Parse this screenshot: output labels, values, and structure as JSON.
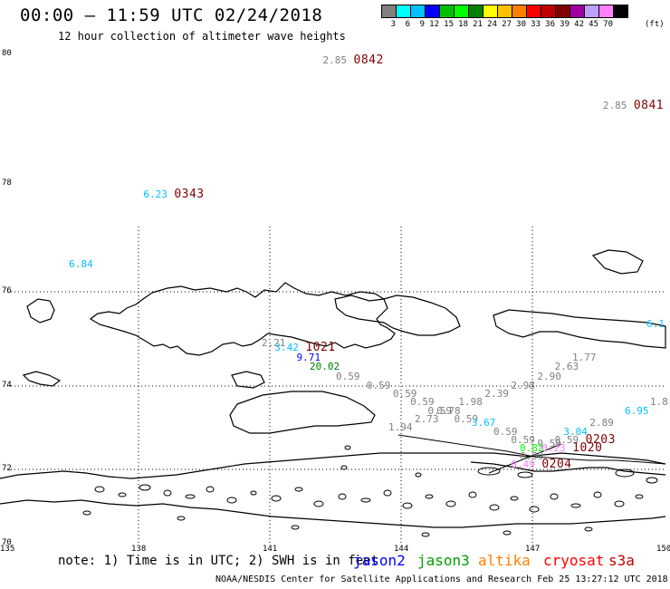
{
  "header": {
    "title": "00:00 – 11:59 UTC 02/24/2018",
    "subtitle": "12 hour collection of altimeter wave heights"
  },
  "color_scale": {
    "colors": [
      "#808080",
      "#00ffff",
      "#00c0ff",
      "#0000ff",
      "#00c000",
      "#00ff00",
      "#008000",
      "#ffff00",
      "#ffc000",
      "#ff8000",
      "#ff0000",
      "#c00000",
      "#800000",
      "#a000a0",
      "#c0a0ff",
      "#ff80ff",
      "#000000"
    ],
    "labels": [
      "3",
      "6",
      "9",
      "12",
      "15",
      "18",
      "21",
      "24",
      "27",
      "30",
      "33",
      "36",
      "39",
      "42",
      "45",
      "70"
    ],
    "unit": "(ft)"
  },
  "axes": {
    "lat_labels": [
      {
        "text": "80",
        "lat": 80
      },
      {
        "text": "78",
        "lat": 78
      },
      {
        "text": "76",
        "lat": 76
      },
      {
        "text": "74",
        "lat": 74
      },
      {
        "text": "72",
        "lat": 72
      },
      {
        "text": "70",
        "lat": 70
      }
    ],
    "lon_labels": [
      {
        "text": "135",
        "lon": 135
      },
      {
        "text": "138",
        "lon": 138
      },
      {
        "text": "141",
        "lon": 141
      },
      {
        "text": "144",
        "lon": 144
      },
      {
        "text": "147",
        "lon": 147
      },
      {
        "text": "150",
        "lon": 150
      }
    ]
  },
  "observations": [
    {
      "swh": "2.85",
      "swh_color": "#808080",
      "lon": 142.5,
      "lat": 79.9,
      "time": "0842"
    },
    {
      "swh": "2.85",
      "swh_color": "#808080",
      "lon": 148.9,
      "lat": 79.2,
      "time": "0841"
    },
    {
      "swh": "6.23",
      "swh_color": "#00c0ff",
      "lon": 138.4,
      "lat": 77.8,
      "time": "0343"
    },
    {
      "swh": "6.84",
      "swh_color": "#00c0ff",
      "lon": 136.7,
      "lat": 76.5
    },
    {
      "swh": "6.1",
      "swh_color": "#00c0ff",
      "lon": 149.9,
      "lat": 75.3
    },
    {
      "swh": "2.21",
      "swh_color": "#808080",
      "lon": 141.1,
      "lat": 74.9
    },
    {
      "swh": "3.42",
      "swh_color": "#00c0ff",
      "lon": 141.4,
      "lat": 74.8,
      "time": "1021"
    },
    {
      "swh": "9.71",
      "swh_color": "#0000ff",
      "lon": 141.9,
      "lat": 74.6
    },
    {
      "swh": "20.02",
      "swh_color": "#008000",
      "lon": 142.2,
      "lat": 74.4
    },
    {
      "swh": "0.59",
      "swh_color": "#808080",
      "lon": 142.8,
      "lat": 74.2
    },
    {
      "swh": "1.77",
      "swh_color": "#808080",
      "lon": 148.2,
      "lat": 74.6
    },
    {
      "swh": "2.63",
      "swh_color": "#808080",
      "lon": 147.8,
      "lat": 74.4
    },
    {
      "swh": "2.90",
      "swh_color": "#808080",
      "lon": 147.4,
      "lat": 74.2
    },
    {
      "swh": "2.98",
      "swh_color": "#808080",
      "lon": 146.8,
      "lat": 74.0
    },
    {
      "swh": "0.59",
      "swh_color": "#808080",
      "lon": 143.5,
      "lat": 74.0
    },
    {
      "swh": "0.59",
      "swh_color": "#808080",
      "lon": 144.1,
      "lat": 73.8
    },
    {
      "swh": "2.39",
      "swh_color": "#808080",
      "lon": 146.2,
      "lat": 73.8
    },
    {
      "swh": "0.59",
      "swh_color": "#808080",
      "lon": 144.5,
      "lat": 73.6
    },
    {
      "swh": "1.98",
      "swh_color": "#808080",
      "lon": 145.6,
      "lat": 73.6
    },
    {
      "swh": "0.59",
      "swh_color": "#808080",
      "lon": 144.9,
      "lat": 73.4
    },
    {
      "swh": "0.78",
      "swh_color": "#808080",
      "lon": 145.1,
      "lat": 73.4
    },
    {
      "swh": "2.73",
      "swh_color": "#808080",
      "lon": 144.6,
      "lat": 73.2
    },
    {
      "swh": "0.59",
      "swh_color": "#808080",
      "lon": 145.5,
      "lat": 73.2
    },
    {
      "swh": "6.95",
      "swh_color": "#00c0ff",
      "lon": 149.4,
      "lat": 73.4
    },
    {
      "swh": "1.8",
      "swh_color": "#808080",
      "lon": 150.0,
      "lat": 73.6
    },
    {
      "swh": "3.67",
      "swh_color": "#00c0ff",
      "lon": 145.9,
      "lat": 73.1
    },
    {
      "swh": "1.94",
      "swh_color": "#808080",
      "lon": 144.0,
      "lat": 73.0
    },
    {
      "swh": "2.89",
      "swh_color": "#808080",
      "lon": 148.6,
      "lat": 73.1
    },
    {
      "swh": "0.59",
      "swh_color": "#808080",
      "lon": 146.4,
      "lat": 72.9
    },
    {
      "swh": "3.04",
      "swh_color": "#00c0ff",
      "lon": 148.0,
      "lat": 72.9
    },
    {
      "swh": "0.59",
      "swh_color": "#808080",
      "lon": 146.8,
      "lat": 72.7
    },
    {
      "swh": "0.59",
      "swh_color": "#808080",
      "lon": 147.8,
      "lat": 72.7,
      "time": "0203"
    },
    {
      "swh": "0.59",
      "swh_color": "#808080",
      "lon": 147.4,
      "lat": 72.6
    },
    {
      "swh": "0.82",
      "swh_color": "#00ff00",
      "lon": 147.0,
      "lat": 72.5
    },
    {
      "swh": "0.23",
      "swh_color": "#ff80ff",
      "lon": 147.5,
      "lat": 72.5,
      "time": "1020"
    },
    {
      "swh": "0.59",
      "swh_color": "#808080",
      "lon": 147.0,
      "lat": 72.3
    },
    {
      "swh": "0.49",
      "swh_color": "#ff80ff",
      "lon": 146.8,
      "lat": 72.1,
      "time": "0204"
    }
  ],
  "footer": {
    "note": "note: 1) Time is in UTC; 2) SWH is in feet",
    "satellites": [
      {
        "name": "jason2",
        "color": "#0000ff"
      },
      {
        "name": "jason3",
        "color": "#00a000"
      },
      {
        "name": "altika",
        "color": "#ff8000"
      },
      {
        "name": "cryosat",
        "color": "#ff0000"
      },
      {
        "name": "s3a",
        "color": "#c00000"
      }
    ],
    "credit": "NOAA/NESDIS Center for Satellite Applications and Research   Feb 25 13:27:12 UTC 2018"
  }
}
